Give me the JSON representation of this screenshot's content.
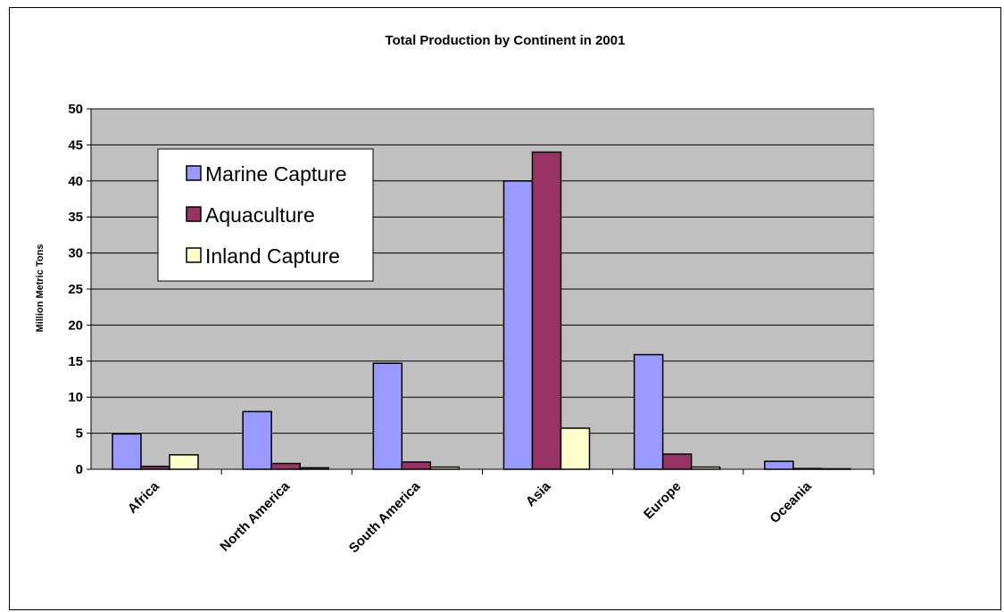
{
  "chart_data": {
    "type": "bar",
    "title": "Total Production by Continent in 2001",
    "xlabel": "",
    "ylabel": "Million Metric Tons",
    "ylim": [
      0,
      50
    ],
    "yticks": [
      0,
      5,
      10,
      15,
      20,
      25,
      30,
      35,
      40,
      45,
      50
    ],
    "grid": true,
    "legend_position": "top-left",
    "categories": [
      "Africa",
      "North America",
      "South America",
      "Asia",
      "Europe",
      "Oceania"
    ],
    "series": [
      {
        "name": "Marine Capture",
        "color": "#9999ff",
        "values": [
          4.9,
          8.0,
          14.7,
          40.0,
          15.9,
          1.1
        ]
      },
      {
        "name": "Aquaculture",
        "color": "#993366",
        "values": [
          0.4,
          0.8,
          1.0,
          44.0,
          2.1,
          0.1
        ]
      },
      {
        "name": "Inland Capture",
        "color": "#ffffcc",
        "values": [
          2.0,
          0.2,
          0.3,
          5.7,
          0.3,
          0.0
        ]
      }
    ],
    "plot_background": "#c0c0c0"
  }
}
